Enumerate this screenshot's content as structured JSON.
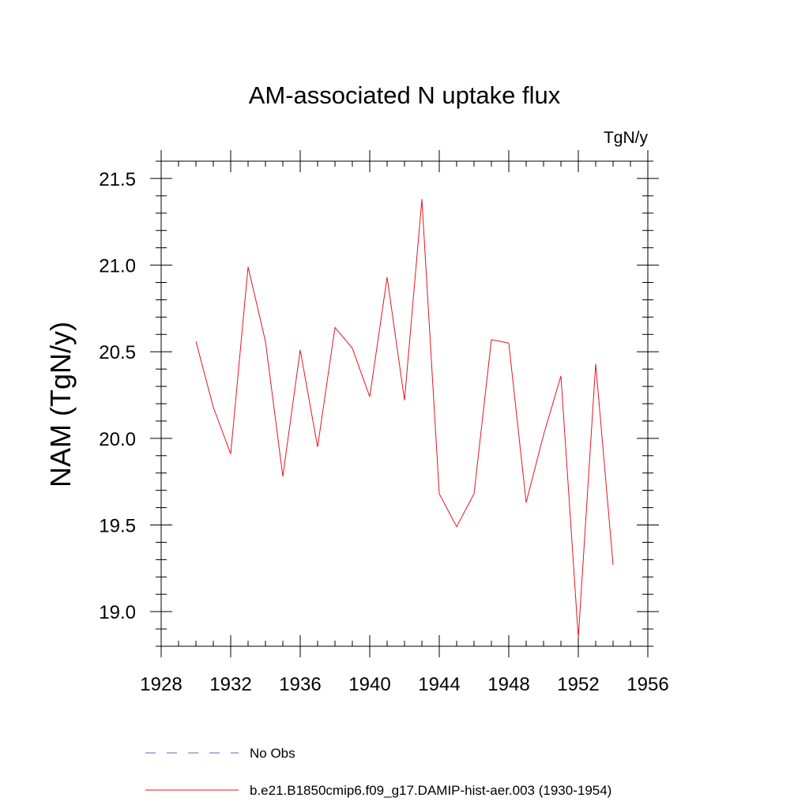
{
  "chart_data": {
    "type": "line",
    "title": "AM-associated N uptake flux",
    "units_label": "TgN/y",
    "ylabel": "NAM  (TgN/y)",
    "xlabel": "",
    "xlim": [
      1928,
      1956
    ],
    "ylim": [
      18.8,
      21.6
    ],
    "x_ticks": [
      1928,
      1932,
      1936,
      1940,
      1944,
      1948,
      1952,
      1956
    ],
    "x_tick_labels": [
      "1928",
      "1932",
      "1936",
      "1940",
      "1944",
      "1948",
      "1952",
      "1956"
    ],
    "y_ticks": [
      19.0,
      19.5,
      20.0,
      20.5,
      21.0,
      21.5
    ],
    "y_tick_labels": [
      "19.0",
      "19.5",
      "20.0",
      "20.5",
      "21.0",
      "21.5"
    ],
    "grid": false,
    "legend_position": "bottom",
    "series": [
      {
        "name": "b.e21.B1850cmip6.f09_g17.DAMIP-hist-aer.003 (1930-1954)",
        "color": "#e8141e",
        "style": "solid",
        "x": [
          1930,
          1931,
          1932,
          1933,
          1934,
          1935,
          1936,
          1937,
          1938,
          1939,
          1940,
          1941,
          1942,
          1943,
          1944,
          1945,
          1946,
          1947,
          1948,
          1949,
          1950,
          1951,
          1952,
          1953,
          1954
        ],
        "y": [
          20.56,
          20.18,
          19.91,
          20.99,
          20.56,
          19.78,
          20.51,
          19.95,
          20.64,
          20.52,
          20.24,
          20.93,
          20.22,
          21.38,
          19.68,
          19.49,
          19.68,
          20.57,
          20.55,
          19.63,
          20.02,
          20.36,
          18.85,
          20.43,
          19.27
        ]
      }
    ],
    "legend_entries": [
      {
        "label": "No Obs",
        "color": "#6a6ab8",
        "style": "dashed"
      },
      {
        "label": "b.e21.B1850cmip6.f09_g17.DAMIP-hist-aer.003 (1930-1954)",
        "color": "#e8141e",
        "style": "solid"
      }
    ]
  }
}
